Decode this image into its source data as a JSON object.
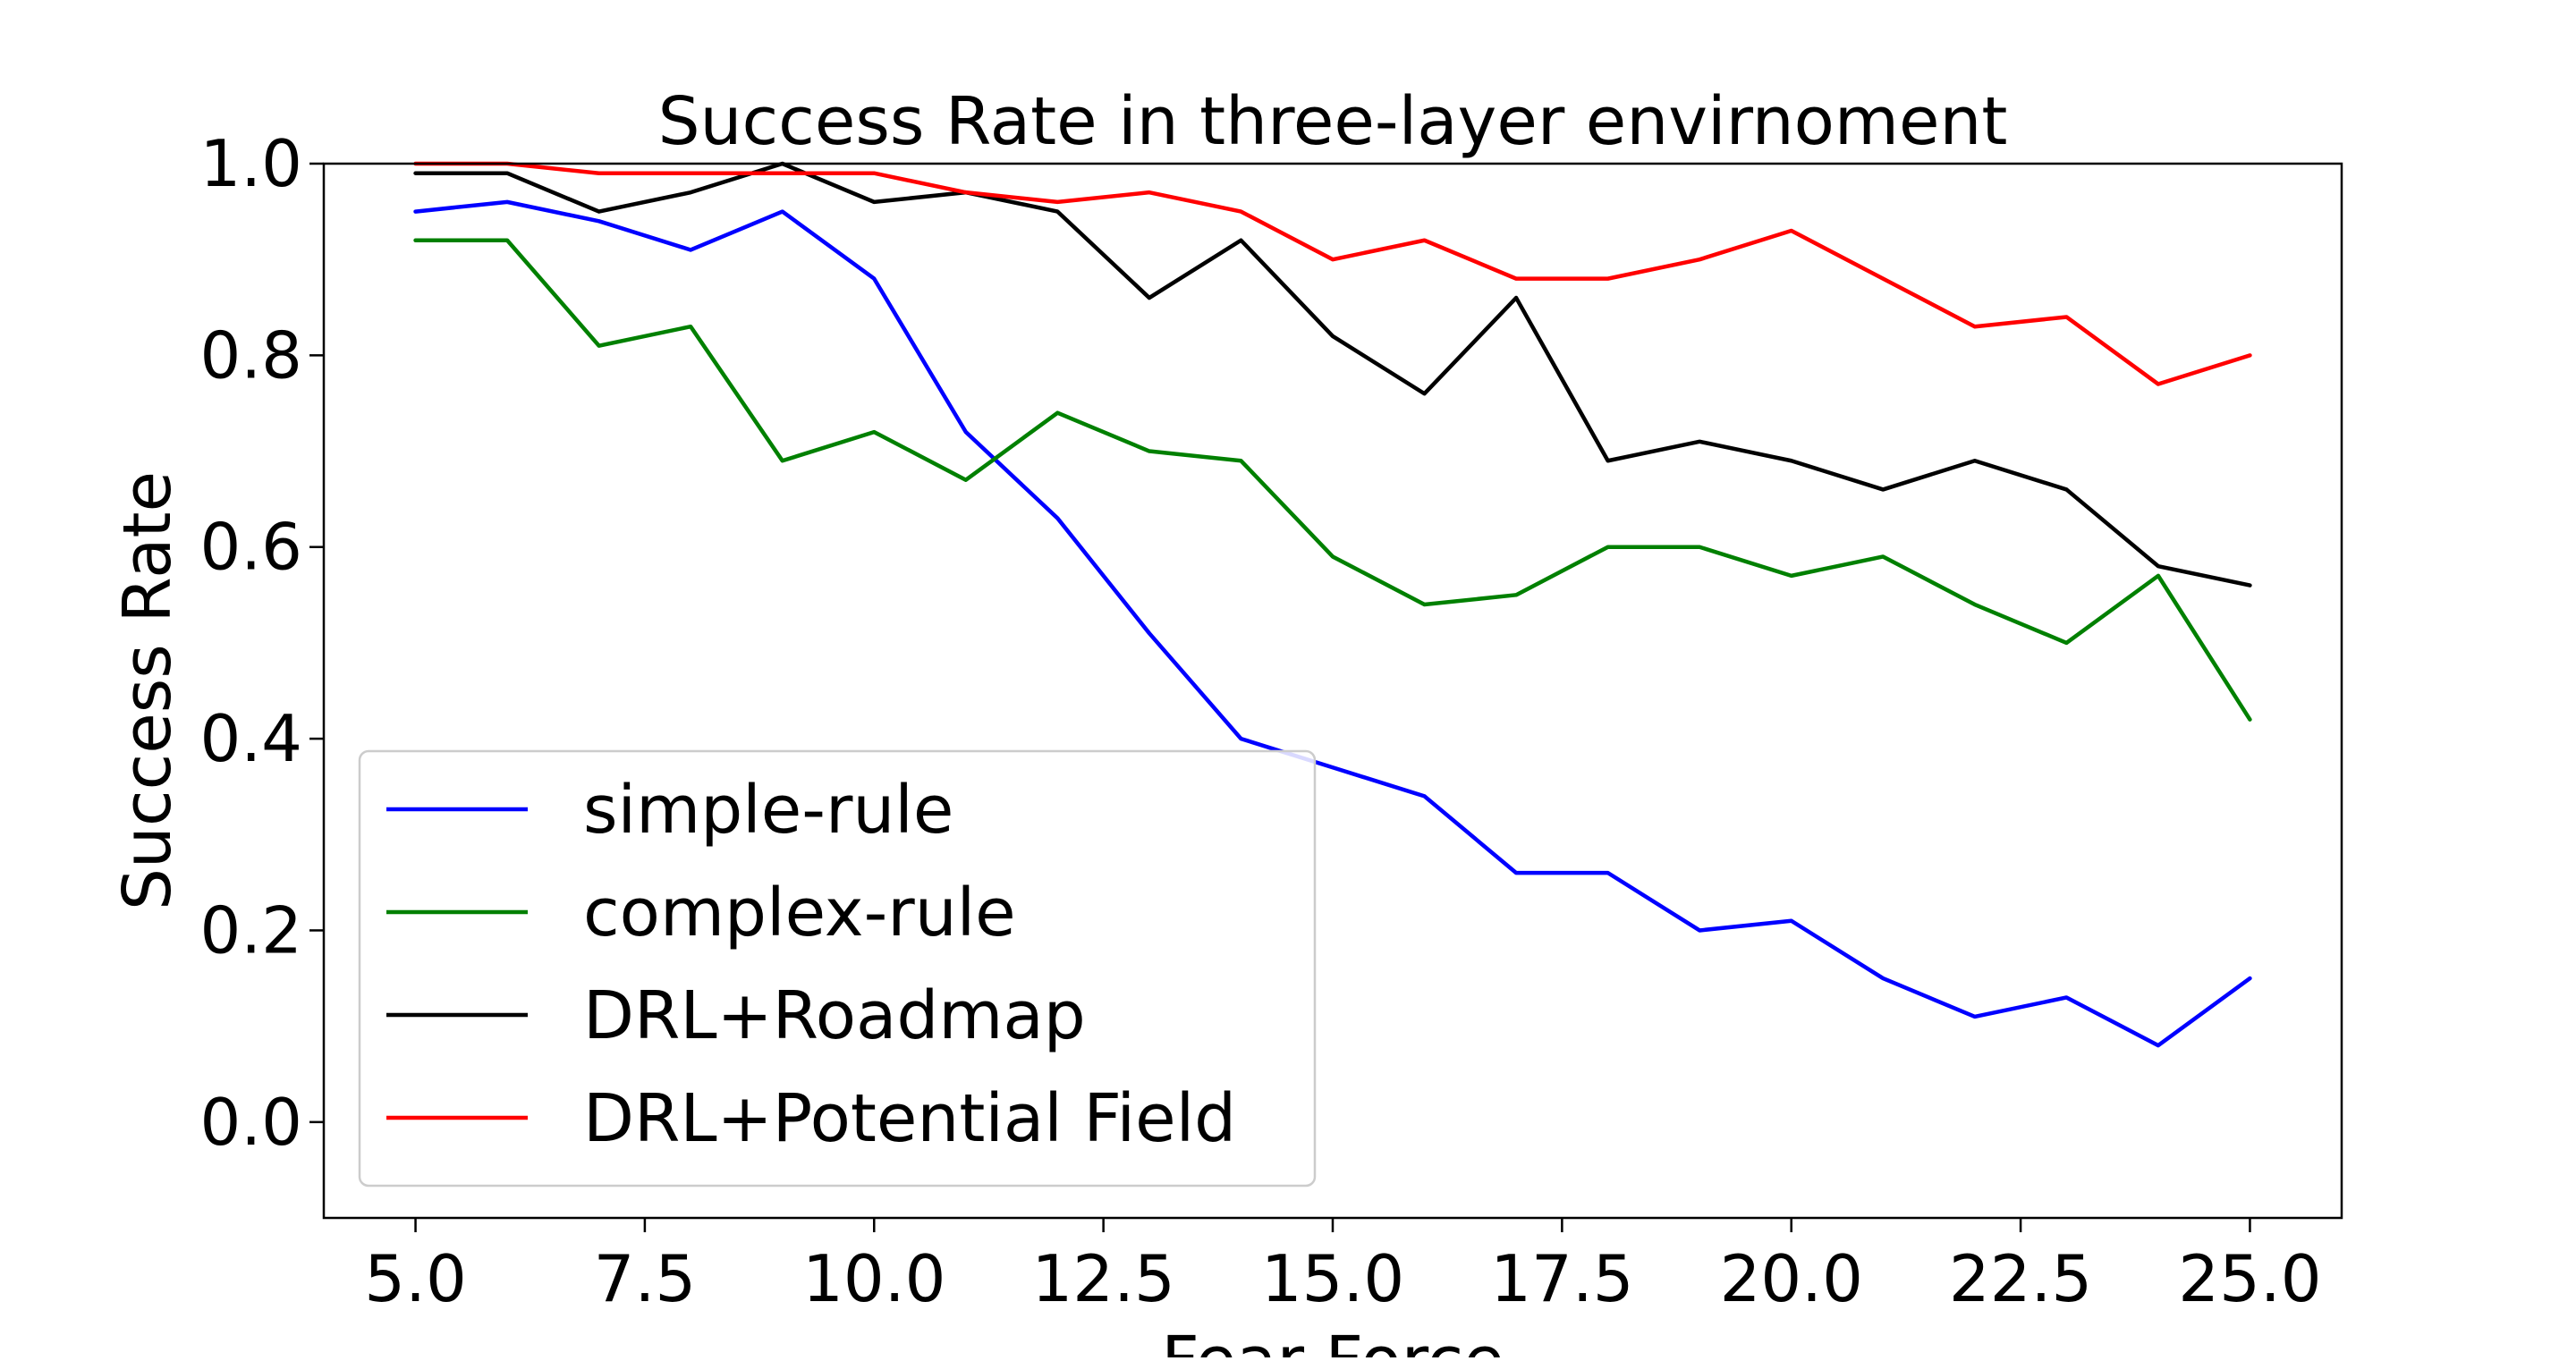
{
  "chart_data": {
    "type": "line",
    "title": "Success Rate in three-layer envirnoment",
    "xlabel": "Fear Force",
    "ylabel": "Success Rate",
    "xlim": [
      4.0,
      26.0
    ],
    "ylim": [
      -0.1,
      1.0
    ],
    "xticks": [
      5.0,
      7.5,
      10.0,
      12.5,
      15.0,
      17.5,
      20.0,
      22.5,
      25.0
    ],
    "xtick_labels": [
      "5.0",
      "7.5",
      "10.0",
      "12.5",
      "15.0",
      "17.5",
      "20.0",
      "22.5",
      "25.0"
    ],
    "yticks": [
      0.0,
      0.2,
      0.4,
      0.6,
      0.8,
      1.0
    ],
    "ytick_labels": [
      "0.0",
      "0.2",
      "0.4",
      "0.6",
      "0.8",
      "1.0"
    ],
    "grid": false,
    "legend_position": "lower-left",
    "x": [
      5,
      6,
      7,
      8,
      9,
      10,
      11,
      12,
      13,
      14,
      15,
      16,
      17,
      18,
      19,
      20,
      21,
      22,
      23,
      24,
      25
    ],
    "series": [
      {
        "name": "simple-rule",
        "color": "#0000ff",
        "values": [
          0.95,
          0.96,
          0.94,
          0.91,
          0.95,
          0.88,
          0.72,
          0.63,
          0.51,
          0.4,
          0.37,
          0.34,
          0.26,
          0.26,
          0.2,
          0.21,
          0.15,
          0.11,
          0.13,
          0.08,
          0.15
        ]
      },
      {
        "name": "complex-rule",
        "color": "#008000",
        "values": [
          0.92,
          0.92,
          0.81,
          0.83,
          0.69,
          0.72,
          0.67,
          0.74,
          0.7,
          0.69,
          0.59,
          0.54,
          0.55,
          0.6,
          0.6,
          0.57,
          0.59,
          0.54,
          0.5,
          0.57,
          0.42
        ]
      },
      {
        "name": "DRL+Roadmap",
        "color": "#000000",
        "values": [
          0.99,
          0.99,
          0.95,
          0.97,
          1.0,
          0.96,
          0.97,
          0.95,
          0.86,
          0.92,
          0.82,
          0.76,
          0.86,
          0.69,
          0.71,
          0.69,
          0.66,
          0.69,
          0.66,
          0.58,
          0.56
        ]
      },
      {
        "name": "DRL+Potential Field",
        "color": "#ff0000",
        "values": [
          1.0,
          1.0,
          0.99,
          0.99,
          0.99,
          0.99,
          0.97,
          0.96,
          0.97,
          0.95,
          0.9,
          0.92,
          0.88,
          0.88,
          0.9,
          0.93,
          0.88,
          0.83,
          0.84,
          0.77,
          0.8
        ]
      }
    ]
  }
}
